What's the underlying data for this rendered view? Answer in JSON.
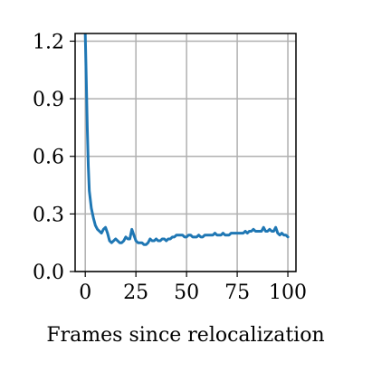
{
  "chart_data": {
    "type": "line",
    "title": "",
    "xlabel": "Frames since relocalization",
    "ylabel": "",
    "xlim": [
      -5,
      104
    ],
    "ylim": [
      0,
      1.24
    ],
    "grid": true,
    "legend": "none",
    "x_ticks": [
      0,
      25,
      50,
      75,
      100
    ],
    "x_tick_labels": [
      "0",
      "25",
      "50",
      "75",
      "100"
    ],
    "y_ticks": [
      0,
      0.3,
      0.6,
      0.9,
      1.2
    ],
    "y_tick_labels": [
      "0.0",
      "0.3",
      "0.6",
      "0.9",
      "1.2"
    ],
    "series": [
      {
        "color": "#1f77b4",
        "x": [
          0,
          0.5,
          1,
          1.5,
          2,
          3,
          4,
          5,
          6,
          7,
          8,
          9,
          10,
          11,
          12,
          13,
          14,
          15,
          16,
          17,
          18,
          19,
          20,
          21,
          22,
          23,
          24,
          25,
          26,
          27,
          28,
          29,
          30,
          31,
          32,
          33,
          34,
          35,
          36,
          37,
          38,
          39,
          40,
          41,
          42,
          43,
          44,
          45,
          46,
          47,
          48,
          49,
          50,
          51,
          52,
          53,
          54,
          55,
          56,
          57,
          58,
          59,
          60,
          61,
          62,
          63,
          64,
          65,
          66,
          67,
          68,
          69,
          70,
          71,
          72,
          73,
          74,
          75,
          76,
          77,
          78,
          79,
          80,
          81,
          82,
          83,
          84,
          85,
          86,
          87,
          88,
          89,
          90,
          91,
          92,
          93,
          94,
          95,
          96,
          97,
          98,
          99,
          100
        ],
        "y": [
          1.24,
          1.0,
          0.75,
          0.55,
          0.42,
          0.33,
          0.28,
          0.24,
          0.22,
          0.21,
          0.2,
          0.22,
          0.23,
          0.2,
          0.16,
          0.15,
          0.16,
          0.17,
          0.16,
          0.15,
          0.15,
          0.16,
          0.18,
          0.17,
          0.17,
          0.22,
          0.19,
          0.16,
          0.15,
          0.15,
          0.15,
          0.14,
          0.14,
          0.15,
          0.17,
          0.16,
          0.16,
          0.17,
          0.16,
          0.16,
          0.17,
          0.17,
          0.16,
          0.17,
          0.17,
          0.18,
          0.18,
          0.19,
          0.19,
          0.19,
          0.19,
          0.18,
          0.18,
          0.19,
          0.19,
          0.18,
          0.18,
          0.18,
          0.19,
          0.18,
          0.18,
          0.19,
          0.19,
          0.19,
          0.19,
          0.19,
          0.2,
          0.19,
          0.19,
          0.19,
          0.2,
          0.19,
          0.19,
          0.19,
          0.2,
          0.2,
          0.2,
          0.2,
          0.2,
          0.2,
          0.2,
          0.21,
          0.2,
          0.21,
          0.21,
          0.22,
          0.21,
          0.21,
          0.21,
          0.21,
          0.23,
          0.21,
          0.21,
          0.22,
          0.21,
          0.21,
          0.23,
          0.2,
          0.19,
          0.2,
          0.19,
          0.19,
          0.18
        ]
      }
    ]
  }
}
